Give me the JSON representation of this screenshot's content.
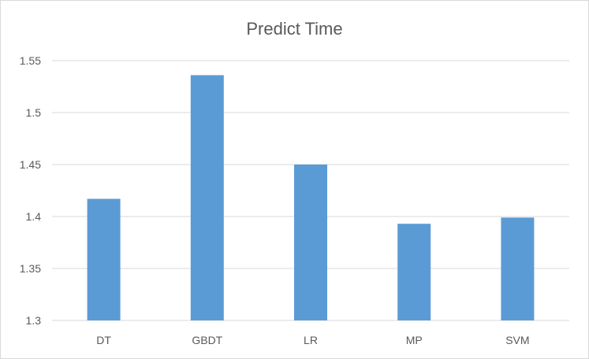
{
  "chart_data": {
    "type": "bar",
    "title": "Predict Time",
    "xlabel": "",
    "ylabel": "",
    "categories": [
      "DT",
      "GBDT",
      "LR",
      "MP",
      "SVM"
    ],
    "values": [
      1.417,
      1.536,
      1.45,
      1.393,
      1.399
    ],
    "ylim": [
      1.3,
      1.55
    ],
    "yticks": [
      "1.3",
      "1.35",
      "1.4",
      "1.45",
      "1.5",
      "1.55"
    ],
    "grid": true,
    "legend": "none",
    "colors": {
      "bar": "#5b9bd5",
      "grid": "#d9d9d9",
      "text": "#595959"
    }
  }
}
